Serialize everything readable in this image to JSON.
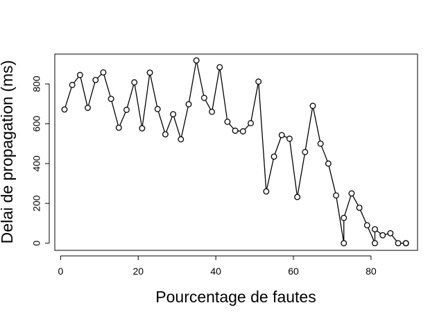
{
  "chart_data": {
    "type": "line",
    "title": "",
    "xlabel": "Pourcentage de fautes",
    "ylabel": "Delai de propagation (ms)",
    "xlim": [
      -1.5,
      92
    ],
    "ylim": [
      -36,
      950
    ],
    "x_ticks": [
      0,
      20,
      40,
      60,
      80
    ],
    "y_ticks": [
      0,
      200,
      400,
      600,
      800
    ],
    "grid": false,
    "legend": "none",
    "marker": "open-circle",
    "line_color": "#000000",
    "series": [
      {
        "x": [
          1,
          3,
          5,
          7,
          9,
          11,
          13,
          15,
          17,
          19,
          21,
          23,
          25,
          27,
          29,
          31,
          33,
          35,
          37,
          39,
          41,
          43,
          45,
          47,
          49,
          51,
          53,
          55,
          57,
          59,
          61,
          63,
          65,
          67,
          69,
          71,
          73,
          73,
          75,
          77,
          79,
          81,
          81,
          83,
          85,
          87,
          89,
          89
        ],
        "values": [
          672,
          795,
          845,
          680,
          820,
          858,
          725,
          580,
          670,
          808,
          577,
          857,
          674,
          547,
          648,
          522,
          698,
          918,
          730,
          660,
          884,
          610,
          565,
          562,
          603,
          812,
          260,
          435,
          543,
          525,
          232,
          458,
          690,
          500,
          400,
          240,
          0,
          127,
          250,
          178,
          90,
          0,
          70,
          40,
          50,
          0,
          0,
          0
        ]
      }
    ]
  }
}
